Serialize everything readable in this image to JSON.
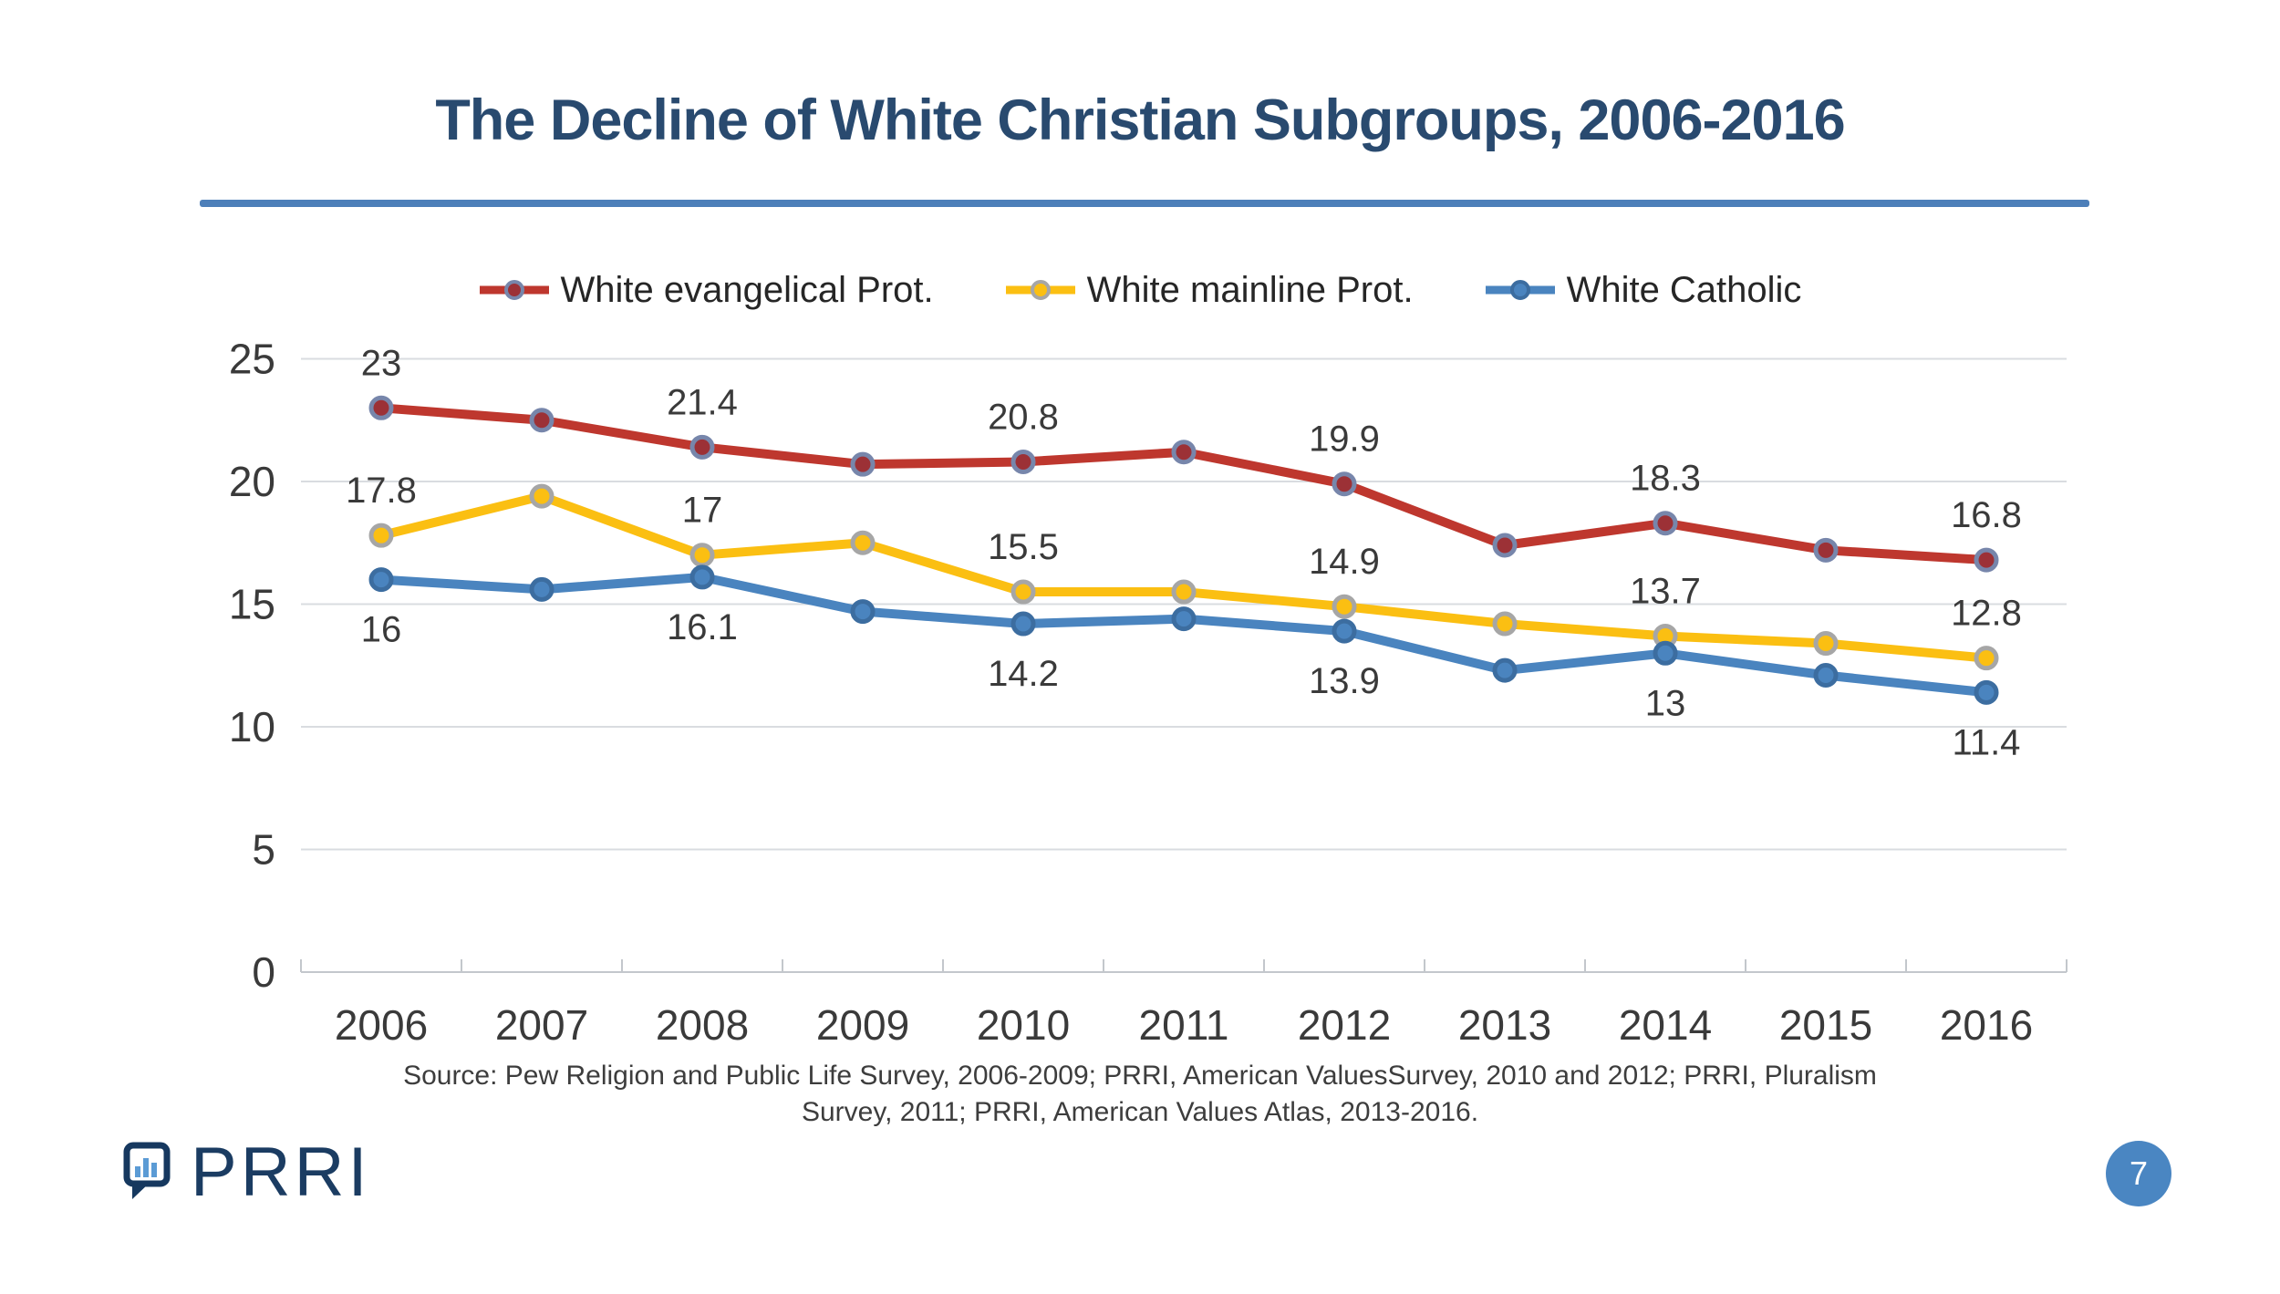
{
  "header": {
    "title": "The Decline of White Christian Subgroups, 2006-2016",
    "title_color": "#294a6f",
    "rule_color": "#4d7fb9"
  },
  "chart_data": {
    "type": "line",
    "categories": [
      "2006",
      "2007",
      "2008",
      "2009",
      "2010",
      "2011",
      "2012",
      "2013",
      "2014",
      "2015",
      "2016"
    ],
    "y_ticks": [
      0,
      5,
      10,
      15,
      20,
      25
    ],
    "ylim": [
      0,
      25
    ],
    "grid": true,
    "legend_position": "top",
    "series": [
      {
        "name": "White evangelical Prot.",
        "color": "#be372e",
        "marker_fill": "#9c3136",
        "marker_stroke": "#7786ab",
        "values": [
          23,
          22.5,
          21.4,
          20.7,
          20.8,
          21.2,
          19.9,
          17.4,
          18.3,
          17.2,
          16.8
        ],
        "labels": [
          "23",
          null,
          "21.4",
          null,
          "20.8",
          null,
          "19.9",
          null,
          "18.3",
          null,
          "16.8"
        ],
        "label_side": "above"
      },
      {
        "name": "White mainline Prot.",
        "color": "#fbbf12",
        "marker_fill": "#fbbf12",
        "marker_stroke": "#a6a6a6",
        "values": [
          17.8,
          19.4,
          17,
          17.5,
          15.5,
          15.5,
          14.9,
          14.2,
          13.7,
          13.4,
          12.8
        ],
        "labels": [
          "17.8",
          null,
          "17",
          null,
          "15.5",
          null,
          "14.9",
          null,
          "13.7",
          null,
          "12.8"
        ],
        "label_side": "above"
      },
      {
        "name": "White Catholic",
        "color": "#4a84bf",
        "marker_fill": "#4a84bf",
        "marker_stroke": "#3c6da0",
        "values": [
          16,
          15.6,
          16.1,
          14.7,
          14.2,
          14.4,
          13.9,
          12.3,
          13,
          12.1,
          11.4
        ],
        "labels": [
          "16",
          null,
          "16.1",
          null,
          "14.2",
          null,
          "13.9",
          null,
          "13",
          null,
          "11.4"
        ],
        "label_side": "below"
      }
    ],
    "gridline_color": "#d9dce0",
    "axis_color": "#c3c7cc",
    "label_color": "#3a3a3a"
  },
  "source": {
    "line1": "Source: Pew Religion and Public Life Survey, 2006-2009; PRRI, American ValuesSurvey, 2010 and 2012; PRRI, Pluralism",
    "line2": "Survey, 2011; PRRI, American Values Atlas, 2013-2016."
  },
  "footer": {
    "logo_text": "PRRI",
    "logo_color": "#1b3c62",
    "logo_bar_color": "#5b9bd5",
    "page_number": "7",
    "page_badge_color": "#4a86c2"
  }
}
